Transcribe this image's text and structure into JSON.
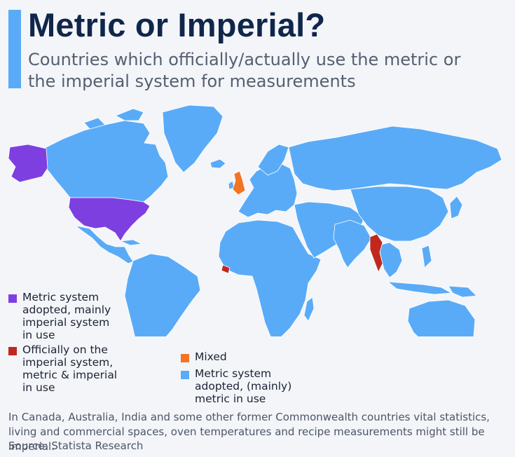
{
  "title": "Metric or Imperial?",
  "subtitle": "Countries which officially/actually use the metric or the imperial system for measurements",
  "colors": {
    "accent": "#5aabf7",
    "metric_mainly_metric": "#5aabf7",
    "metric_mainly_imperial": "#7e3fe0",
    "officially_imperial": "#c0281e",
    "mixed": "#f27424",
    "background": "#f3f5f9"
  },
  "legend": [
    {
      "key": "metric_mainly_imperial",
      "label": "Metric system adopted, mainly imperial system in use",
      "color": "#7e3fe0"
    },
    {
      "key": "officially_imperial",
      "label": "Officially on the imperial system, metric & imperial in use",
      "color": "#c0281e"
    },
    {
      "key": "mixed",
      "label": "Mixed",
      "color": "#f27424"
    },
    {
      "key": "metric_mainly_metric",
      "label": "Metric system adopted, (mainly) metric in use",
      "color": "#5aabf7"
    }
  ],
  "regions": {
    "metric_mainly_imperial": [
      "United States"
    ],
    "officially_imperial": [
      "Myanmar",
      "Liberia"
    ],
    "mixed": [
      "United Kingdom"
    ]
  },
  "footnote": "In Canada, Australia, India and some other former Commonwealth countries vital statistics, living and commercial spaces, oven temperatures and recipe measurements might still be imperial.",
  "source": "Source: Statista Research"
}
